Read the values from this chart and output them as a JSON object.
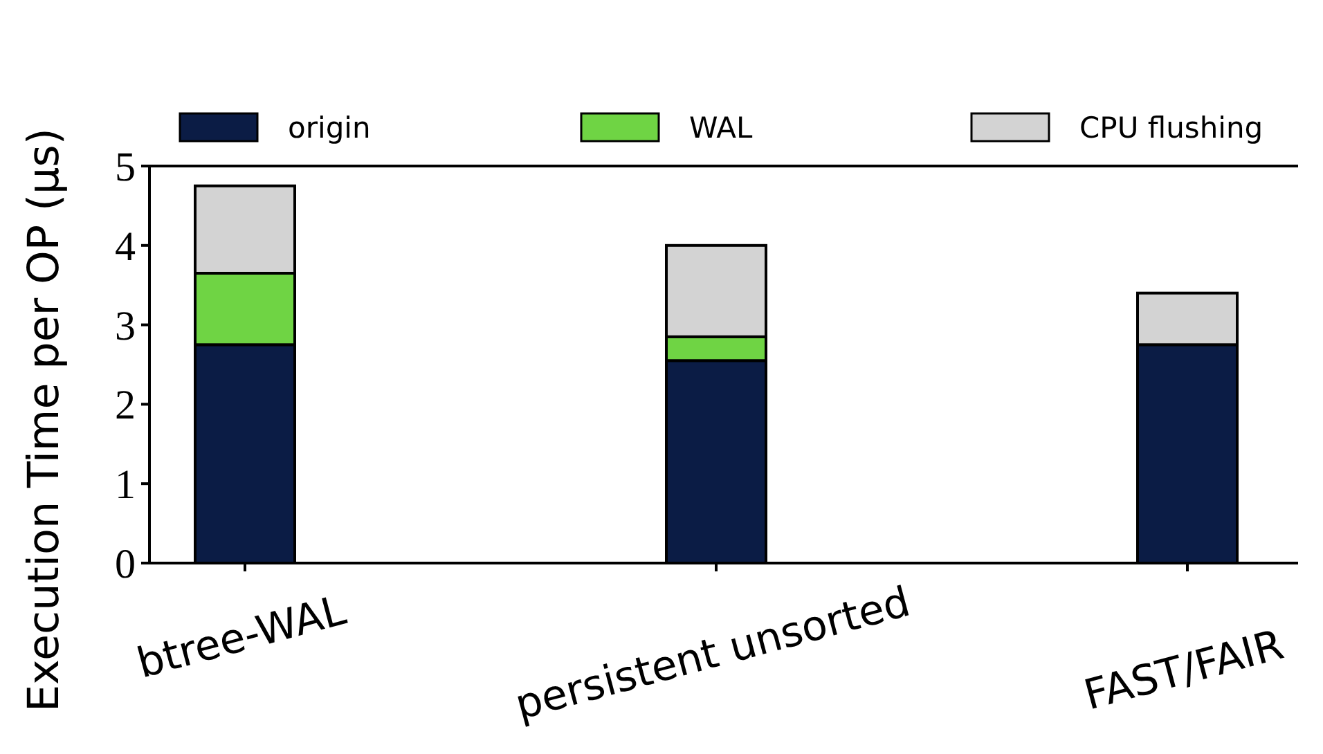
{
  "chart_data": {
    "type": "bar",
    "stacked": true,
    "ylabel": "Execution Time per OP (μs)",
    "categories": [
      "btree-WAL",
      "persistent unsorted",
      "FAST/FAIR"
    ],
    "series": [
      {
        "name": "origin",
        "color": "#0b1c45",
        "values": [
          2.75,
          2.55,
          2.75
        ]
      },
      {
        "name": "WAL",
        "color": "#6fd444",
        "values": [
          0.9,
          0.3,
          0
        ]
      },
      {
        "name": "CPU flushing",
        "color": "#d3d3d3",
        "values": [
          1.1,
          1.15,
          0.65
        ]
      }
    ],
    "ylim": [
      0,
      5
    ],
    "yticks": [
      0,
      1,
      2,
      3,
      4,
      5
    ],
    "legend": "top",
    "grid": false
  }
}
